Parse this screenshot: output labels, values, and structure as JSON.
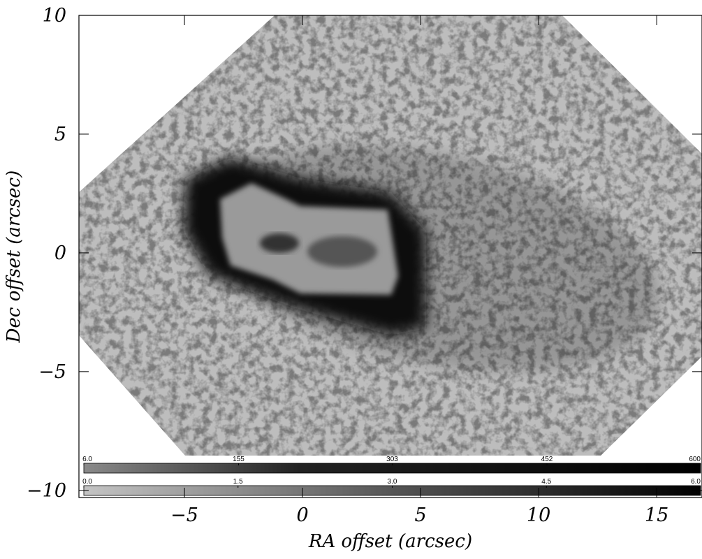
{
  "chart_data": {
    "type": "image",
    "xlabel": "RA offset (arcsec)",
    "ylabel": "Dec offset (arcsec)",
    "xlim": [
      -9.47,
      16.92
    ],
    "ylim": [
      -10.3,
      10
    ],
    "xticks": [
      {
        "value": -5,
        "label": "−5"
      },
      0,
      5,
      10,
      15
    ],
    "yticks": [
      10,
      5,
      0,
      {
        "value": -5,
        "label": "−5"
      },
      {
        "value": -10,
        "label": "−10"
      }
    ],
    "colorbars": [
      {
        "lim": [
          6,
          600
        ],
        "ticks": [
          {
            "value": 6,
            "label": "6.0"
          },
          155,
          303,
          452,
          600
        ]
      },
      {
        "lim": [
          0,
          6
        ],
        "ticks": [
          {
            "value": 0,
            "label": "0.0"
          },
          1.5,
          {
            "value": 3,
            "label": "3.0"
          },
          4.5,
          {
            "value": 6,
            "label": "6.0"
          }
        ]
      }
    ]
  }
}
